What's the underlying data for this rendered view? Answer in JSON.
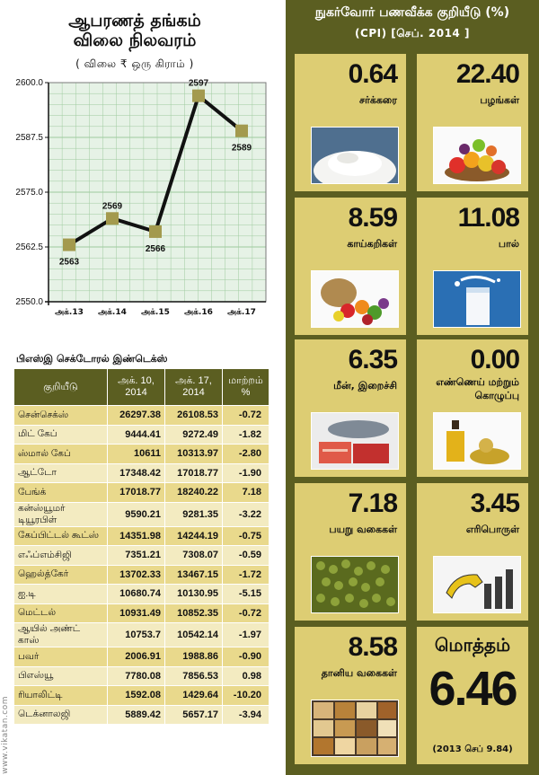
{
  "gold": {
    "title_line1": "ஆபரணத் தங்கம்",
    "title_line2": "விலை நிலவரம்",
    "unit": "( விலை ₹ ஒரு கிராம் )"
  },
  "chart_data": {
    "type": "line",
    "categories": [
      "அக்.13",
      "அக்.14",
      "அக்.15",
      "அக்.16",
      "அக்.17"
    ],
    "values": [
      2563,
      2569,
      2566,
      2597,
      2589
    ],
    "ylim": [
      2550,
      2600
    ],
    "yticks": [
      "2550.0",
      "2562.5",
      "2575.0",
      "2587.5",
      "2600.0"
    ],
    "grid": true,
    "colors": {
      "line": "#111111",
      "marker": "#a39a4e"
    }
  },
  "sector": {
    "title": "பிஎஸ்இ செக்டோரல் இண்டெக்ஸ்",
    "headers": [
      "குறியீடு",
      "அக். 10, 2014",
      "அக். 17, 2014",
      "மாற்றம் %"
    ],
    "rows": [
      [
        "சென்செக்ஸ்",
        "26297.38",
        "26108.53",
        "-0.72"
      ],
      [
        "மிட் கேப்",
        "9444.41",
        "9272.49",
        "-1.82"
      ],
      [
        "ஸ்மால் கேப்",
        "10611",
        "10313.97",
        "-2.80"
      ],
      [
        "ஆட்டோ",
        "17348.42",
        "17018.77",
        "-1.90"
      ],
      [
        "பேங்க்",
        "17018.77",
        "18240.22",
        "7.18"
      ],
      [
        "கன்ஸ்யூமர் டியூரபிள்",
        "9590.21",
        "9281.35",
        "-3.22"
      ],
      [
        "கேப்பிட்டல் கூட்ஸ்",
        "14351.98",
        "14244.19",
        "-0.75"
      ],
      [
        "எஃப்எம்சிஜி",
        "7351.21",
        "7308.07",
        "-0.59"
      ],
      [
        "ஹெல்த்கேர்",
        "13702.33",
        "13467.15",
        "-1.72"
      ],
      [
        "ஐ.டி",
        "10680.74",
        "10130.95",
        "-5.15"
      ],
      [
        "மெட்டல்",
        "10931.49",
        "10852.35",
        "-0.72"
      ],
      [
        "ஆயில் அண்ட் காஸ்",
        "10753.7",
        "10542.14",
        "-1.97"
      ],
      [
        "பவர்",
        "2006.91",
        "1988.86",
        "-0.90"
      ],
      [
        "பிஎஸ்யூ",
        "7780.08",
        "7856.53",
        "0.98"
      ],
      [
        "ரியாலிட்டி",
        "1592.08",
        "1429.64",
        "-10.20"
      ],
      [
        "டெக்னாலஜி",
        "5889.42",
        "5657.17",
        "-3.94"
      ]
    ]
  },
  "watermark": "www.vikatan.com",
  "cpi": {
    "title_line1": "நுகர்வோர் பணவீக்க குறியீடு (%)",
    "title_line2": "(CPI) [செப். 2014 ]",
    "tiles": [
      {
        "value": "0.64",
        "label": "சர்க்கரை",
        "icon": "sugar-icon"
      },
      {
        "value": "22.40",
        "label": "பழங்கள்",
        "icon": "fruits-icon"
      },
      {
        "value": "8.59",
        "label": "காய்கறிகள்",
        "icon": "vegetables-icon"
      },
      {
        "value": "11.08",
        "label": "பால்",
        "icon": "milk-icon"
      },
      {
        "value": "6.35",
        "label": "மீன், இறைச்சி",
        "icon": "fish-meat-icon"
      },
      {
        "value": "0.00",
        "label": "எண்ணெய் மற்றும் கொழுப்பு",
        "icon": "oil-icon"
      },
      {
        "value": "7.18",
        "label": "பயறு வகைகள்",
        "icon": "pulses-icon"
      },
      {
        "value": "3.45",
        "label": "எரிபொருள்",
        "icon": "fuel-icon"
      },
      {
        "value": "8.58",
        "label": "தானிய வகைகள்",
        "icon": "grains-icon"
      }
    ],
    "total": {
      "label": "மொத்தம்",
      "value": "6.46",
      "note": "(2013 செப் 9.84)"
    }
  }
}
